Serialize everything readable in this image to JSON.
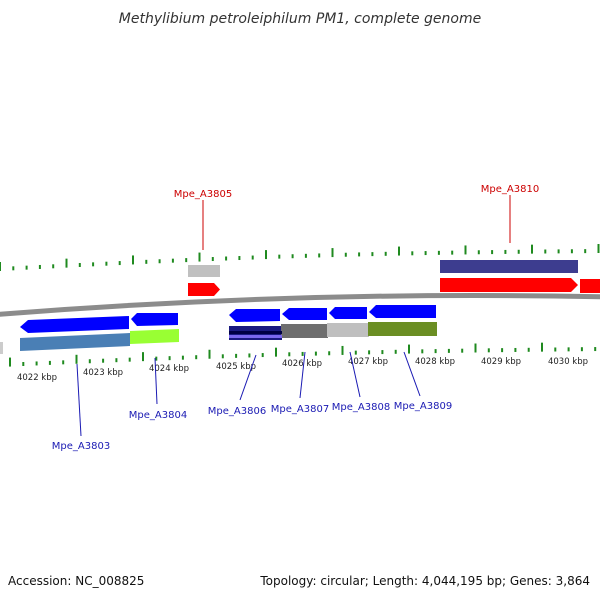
{
  "title": "Methylibium petroleiphilum PM1, complete genome",
  "footer": {
    "accession": "Accession: NC_008825",
    "summary": "Topology: circular; Length: 4,044,195 bp; Genes: 3,864"
  },
  "colors": {
    "backbone": "#8c8c8c",
    "tick": "#1f8a1f",
    "forward_gene": "#ff0000",
    "reverse_gene": "#0000ff",
    "forward_label": "#cc0000",
    "reverse_label": "#1a1ab3"
  },
  "scale": {
    "labels": [
      "4022 kbp",
      "4023 kbp",
      "4024 kbp",
      "4025 kbp",
      "4026 kbp",
      "4027 kbp",
      "4028 kbp",
      "4029 kbp",
      "4030 kbp"
    ]
  },
  "genes": {
    "forward": [
      {
        "id": "fwd-gene-1",
        "label": "Mpe_A3805",
        "color": "#ff0000"
      },
      {
        "id": "fwd-gene-2",
        "label": "Mpe_A3810",
        "color": "#ff0000"
      },
      {
        "id": "fwd-gene-3",
        "label": "",
        "color": "#ff0000"
      }
    ],
    "reverse": [
      {
        "id": "rev-gene-1",
        "label": "Mpe_A3803",
        "color": "#0000ff"
      },
      {
        "id": "rev-gene-2",
        "label": "Mpe_A3804",
        "color": "#0000ff"
      },
      {
        "id": "rev-gene-3",
        "label": "Mpe_A3806",
        "color": "#0000ff"
      },
      {
        "id": "rev-gene-4",
        "label": "Mpe_A3807",
        "color": "#0000ff"
      },
      {
        "id": "rev-gene-5",
        "label": "Mpe_A3808",
        "color": "#0000ff"
      },
      {
        "id": "rev-gene-6",
        "label": "Mpe_A3809",
        "color": "#0000ff"
      }
    ]
  },
  "cog_bars": {
    "forward": [
      {
        "id": "cog-fwd-1",
        "color": "#c0c0c0"
      },
      {
        "id": "cog-fwd-2",
        "color": "#3d3d8f"
      }
    ],
    "reverse": [
      {
        "id": "cog-rev-1",
        "color": "#4a7fb5"
      },
      {
        "id": "cog-rev-2",
        "color": "#99ff33"
      },
      {
        "id": "cog-rev-3",
        "color": "#1a1a80"
      },
      {
        "id": "cog-rev-4",
        "color": "#6e6e6e"
      },
      {
        "id": "cog-rev-5",
        "color": "#bfbfbf"
      },
      {
        "id": "cog-rev-6",
        "color": "#6b8e23"
      }
    ]
  }
}
